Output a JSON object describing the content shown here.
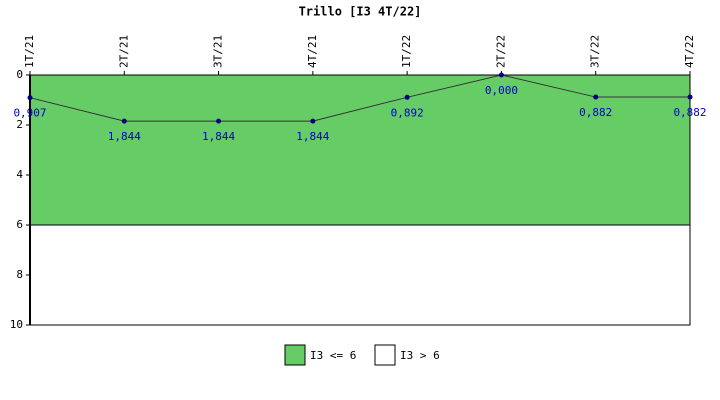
{
  "chart_data": {
    "type": "line",
    "title": "Trillo [I3 4T/22]",
    "categories": [
      "1T/21",
      "2T/21",
      "3T/21",
      "4T/21",
      "1T/22",
      "2T/22",
      "3T/22",
      "4T/22"
    ],
    "series": [
      {
        "color": "#000080",
        "values": [
          0.907,
          1.844,
          1.844,
          1.844,
          0.892,
          0,
          0.882,
          0.882
        ],
        "value_labels": [
          "0,907",
          "1,844",
          "1,844",
          "1,844",
          "0,892",
          "0,000",
          "0,882",
          "0,882"
        ]
      }
    ],
    "bands": [
      {
        "name": "I3 <= 6",
        "from": 0,
        "to": 6,
        "color": "#66cc66"
      },
      {
        "name": "I3 > 6",
        "from": 6,
        "to": 10,
        "color": "#ffffff"
      }
    ],
    "ylim": [
      0,
      10
    ],
    "y_inverted": true,
    "yticks": [
      0,
      2,
      4,
      6,
      8,
      10
    ]
  }
}
